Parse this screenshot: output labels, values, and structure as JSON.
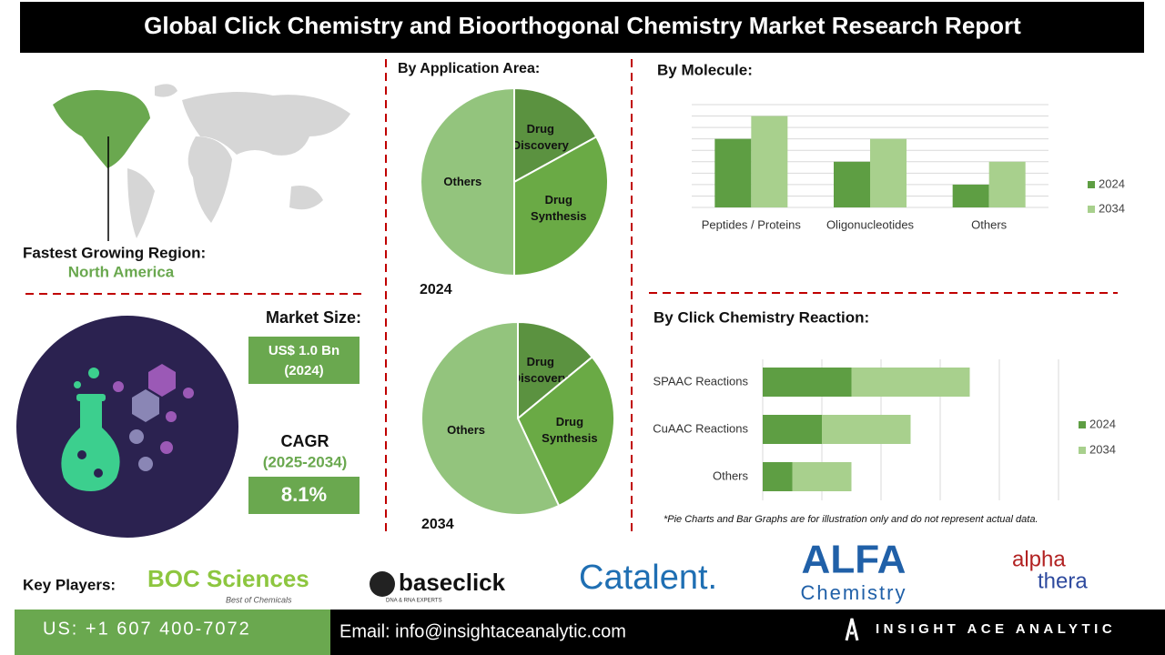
{
  "header": {
    "title": "Global Click Chemistry and Bioorthogonal Chemistry Market Research Report"
  },
  "region": {
    "label": "Fastest Growing Region:",
    "value": "North America"
  },
  "market": {
    "size_label": "Market Size:",
    "size_value": "US$ 1.0 Bn",
    "size_year": "(2024)",
    "cagr_label": "CAGR",
    "cagr_period": "(2025-2034)",
    "cagr_value": "8.1%"
  },
  "application": {
    "heading": "By Application Area:"
  },
  "chart_data": [
    {
      "type": "pie",
      "title": "2024",
      "categories": [
        "Drug Discovery",
        "Drug Synthesis",
        "Others"
      ],
      "values": [
        17,
        33,
        50
      ],
      "colors": [
        "#5b9240",
        "#6aaa45",
        "#93c47d"
      ]
    },
    {
      "type": "pie",
      "title": "2034",
      "categories": [
        "Drug Discovery",
        "Drug Synthesis",
        "Others"
      ],
      "values": [
        14,
        29,
        57
      ],
      "colors": [
        "#5b9240",
        "#6aaa45",
        "#93c47d"
      ]
    },
    {
      "type": "bar",
      "title": "By Molecule:",
      "categories": [
        "Peptides / Proteins",
        "Oligonucleotides",
        "Others"
      ],
      "series": [
        {
          "name": "2024",
          "color": "#5e9e43",
          "values": [
            6,
            4,
            2
          ]
        },
        {
          "name": "2034",
          "color": "#a8d08d",
          "values": [
            8,
            6,
            4
          ]
        }
      ],
      "ylim": [
        0,
        9
      ],
      "yticks": [
        0,
        1,
        2,
        3,
        4,
        5,
        6,
        7,
        8,
        9
      ],
      "grid": true,
      "legend": "right"
    },
    {
      "type": "stacked_barh",
      "title": "By Click Chemistry Reaction:",
      "categories": [
        "SPAAC Reactions",
        "CuAAC Reactions",
        "Others"
      ],
      "series": [
        {
          "name": "2024",
          "color": "#5e9e43",
          "values": [
            1.5,
            1,
            0.5
          ]
        },
        {
          "name": "2034",
          "color": "#a8d08d",
          "values": [
            2,
            1.5,
            1
          ]
        }
      ],
      "xlim": [
        0,
        5
      ],
      "xticks": [
        0,
        1,
        2,
        3,
        4,
        5
      ],
      "grid": true,
      "legend": "right"
    }
  ],
  "note": "*Pie Charts and Bar Graphs are for illustration only and do not represent actual data.",
  "key_players": {
    "label": "Key Players:",
    "logos": [
      "BOC Sciences",
      "Best of Chemicals",
      "baseclick",
      "DNA & RNA EXPERTS",
      "Catalent.",
      "ALFA",
      "Chemistry",
      "alpha",
      "thera"
    ]
  },
  "footer": {
    "phone": "US: +1 607 400-7072",
    "email": "Email: info@insightaceanalytic.com",
    "brand": "INSIGHT ACE ANALYTIC"
  }
}
